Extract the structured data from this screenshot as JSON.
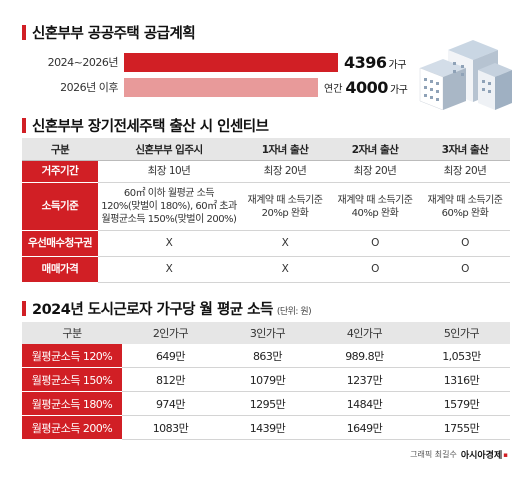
{
  "section1": {
    "title": "신혼부부 공공주택 공급계획",
    "rows": [
      {
        "label": "2024~2026년",
        "prefix": "",
        "value": "4396",
        "unit": "가구",
        "color": "#d11f25",
        "share": 0.668
      },
      {
        "label": "2026년 이후",
        "prefix": "연간",
        "value": "4000",
        "unit": "가구",
        "color": "#e89a9a",
        "share": 0.605
      }
    ]
  },
  "section2": {
    "title": "신혼부부 장기전세주택 출산 시 인센티브",
    "headers": [
      "구분",
      "신혼부부 입주시",
      "1자녀 출산",
      "2자녀 출산",
      "3자녀 출산"
    ],
    "rows": [
      {
        "label": "거주기간",
        "cells": [
          "최장 10년",
          "최장 20년",
          "최장 20년",
          "최장 20년"
        ]
      },
      {
        "label": "소득기준",
        "cells": [
          "60㎡ 이하 월평균 소득\n120%(맞벌이 180%), 60㎡ 초과\n월평균소득 150%(맞벌이 200%)",
          "재계약 때 소득기준\n20%p 완화",
          "재계약 때 소득기준\n40%p 완화",
          "재계약 때 소득기준\n60%p 완화"
        ]
      },
      {
        "label": "우선매수청구권",
        "cells": [
          "X",
          "X",
          "O",
          "O"
        ]
      },
      {
        "label": "매매가격",
        "cells": [
          "X",
          "X",
          "O",
          "O"
        ]
      }
    ]
  },
  "section3": {
    "title": "2024년 도시근로자 가구당 월 평균 소득",
    "unit": "(단위: 원)",
    "headers": [
      "구분",
      "2인가구",
      "3인가구",
      "4인가구",
      "5인가구"
    ],
    "rows": [
      {
        "label": "월평균소득 120%",
        "cells": [
          "649만",
          "863만",
          "989.8만",
          "1,053만"
        ]
      },
      {
        "label": "월평균소득 150%",
        "cells": [
          "812만",
          "1079만",
          "1237만",
          "1316만"
        ]
      },
      {
        "label": "월평균소득 180%",
        "cells": [
          "974만",
          "1295만",
          "1484만",
          "1579만"
        ]
      },
      {
        "label": "월평균소득 200%",
        "cells": [
          "1083만",
          "1439만",
          "1649만",
          "1755만"
        ]
      }
    ]
  },
  "footer": {
    "credit": "그래픽 최길수",
    "brand": "아시아경제"
  },
  "colors": {
    "accent": "#d11f25",
    "accent_light": "#e89a9a",
    "header_bg": "#e6e6e6"
  }
}
